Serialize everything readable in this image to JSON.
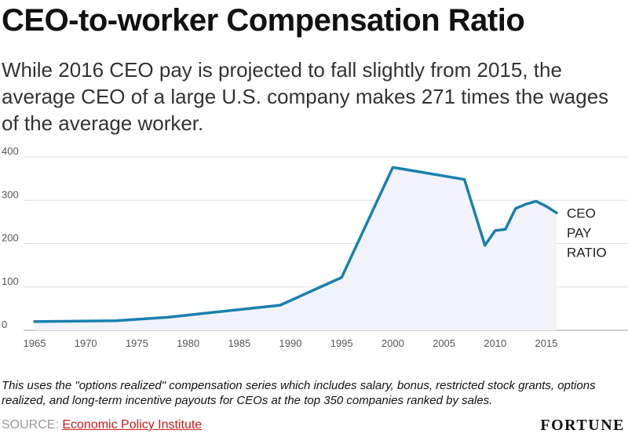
{
  "header": {
    "title": "CEO-to-worker Compensation Ratio",
    "subtitle": "While 2016 CEO pay is projected to fall slightly from 2015, the average CEO of a large U.S. company makes 271 times the wages of the average worker."
  },
  "chart_data": {
    "type": "area",
    "x": [
      1965,
      1973,
      1978,
      1989,
      1995,
      2000,
      2007,
      2009,
      2010,
      2011,
      2012,
      2013,
      2014,
      2015,
      2016
    ],
    "series": [
      {
        "name": "CEO PAY RATIO",
        "label_lines": [
          "CEO",
          "PAY",
          "RATIO"
        ],
        "values": [
          20,
          22,
          30,
          58,
          122,
          376,
          348,
          196,
          230,
          233,
          281,
          291,
          298,
          286,
          271
        ]
      }
    ],
    "xlim": [
      1965,
      2016
    ],
    "ylim": [
      0,
      400
    ],
    "xticks": [
      1965,
      1970,
      1975,
      1980,
      1985,
      1990,
      1995,
      2000,
      2005,
      2010,
      2015
    ],
    "yticks": [
      0,
      100,
      200,
      300,
      400
    ],
    "grid": "horizontal",
    "colors": {
      "line": "#1a80ad",
      "fill": "#f2f3f8",
      "grid": "#dddddd"
    }
  },
  "footer": {
    "note": "This uses the \"options realized\" compensation series which includes salary, bonus, restricted stock grants, options realized, and long-term incentive payouts for CEOs at the top 350 companies ranked by sales.",
    "source_prefix": "SOURCE: ",
    "source_link": "Economic Policy Institute",
    "brand": "FORTUNE"
  }
}
